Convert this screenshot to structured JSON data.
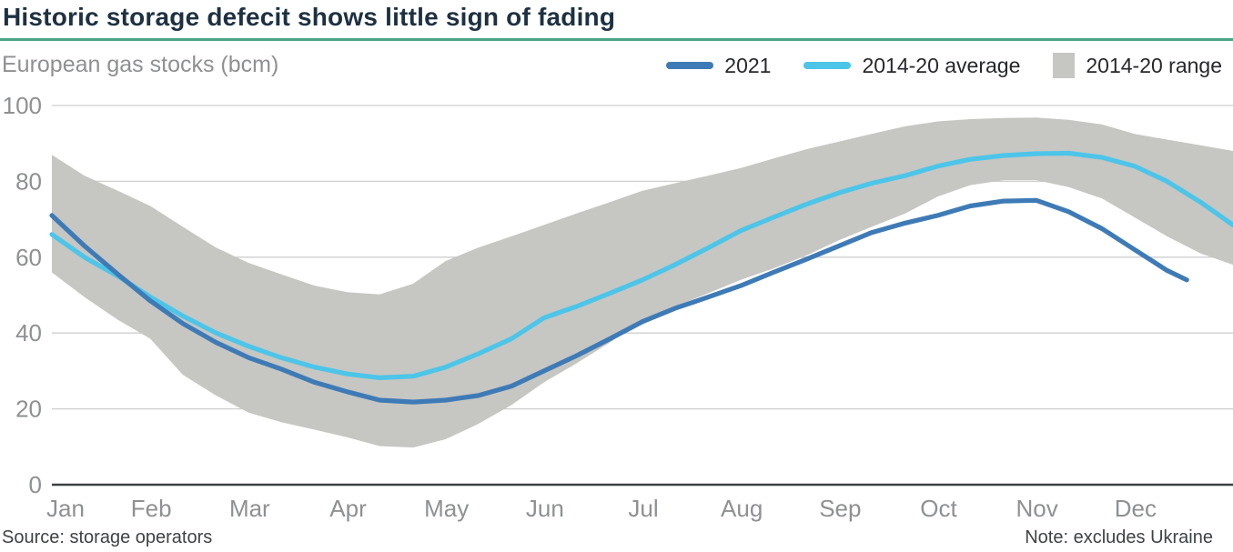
{
  "header": {
    "title": "Historic storage defecit shows little sign of fading",
    "subtitle": "European gas stocks (bcm)"
  },
  "legend_items": [
    {
      "label": "2021",
      "swatch": "line",
      "color": "#3e7bb6"
    },
    {
      "label": "2014-20 average",
      "swatch": "line",
      "color": "#4cc5e9"
    },
    {
      "label": "2014-20 range",
      "swatch": "rect",
      "color": "#c6c6c3"
    }
  ],
  "footer": {
    "source": "Source: storage operators",
    "note": "Note: excludes Ukraine"
  },
  "colors": {
    "title_navy": "#1e3142",
    "rule_green": "#4ca387",
    "axis_label_gray": "#8e9092",
    "gridline_gray": "#cfcfcf",
    "zero_axis_dark": "#3c4043",
    "series_2021": "#3e7bb6",
    "series_average": "#4cc5e9",
    "series_range": "#c6c6c3",
    "legend_text": "#26282b",
    "footer_text": "#3f4245"
  },
  "chart_data": {
    "type": "line",
    "title": "Historic storage defecit shows little sign of fading",
    "subtitle": "European gas stocks (bcm)",
    "unit": "bcm",
    "grid": "horizontal",
    "legend_position": "top-right",
    "legend": [
      "2021",
      "2014-20 average",
      "2014-20 range"
    ],
    "x_labels": [
      "Jan",
      "Feb",
      "Mar",
      "Apr",
      "May",
      "Jun",
      "Jul",
      "Aug",
      "Sep",
      "Oct",
      "Nov",
      "Dec"
    ],
    "y_ticks": [
      0,
      20,
      40,
      60,
      80,
      100
    ],
    "ylim": [
      0,
      100
    ],
    "x_domain_months": [
      0,
      12
    ],
    "series": [
      {
        "name": "2014-20 range",
        "type": "band",
        "color": "#c6c6c3",
        "top": [
          [
            0,
            87
          ],
          [
            0.33,
            81.5
          ],
          [
            0.67,
            77.5
          ],
          [
            1,
            73.5
          ],
          [
            1.33,
            68
          ],
          [
            1.67,
            62.5
          ],
          [
            2,
            58.5
          ],
          [
            2.33,
            55.5
          ],
          [
            2.67,
            52.5
          ],
          [
            3,
            50.8
          ],
          [
            3.33,
            50.2
          ],
          [
            3.67,
            53
          ],
          [
            4,
            59
          ],
          [
            4.33,
            62.5
          ],
          [
            4.67,
            65.5
          ],
          [
            5,
            68.5
          ],
          [
            5.33,
            71.5
          ],
          [
            5.67,
            74.5
          ],
          [
            6,
            77.5
          ],
          [
            6.33,
            79.5
          ],
          [
            6.67,
            81.5
          ],
          [
            7,
            83.5
          ],
          [
            7.33,
            86
          ],
          [
            7.67,
            88.5
          ],
          [
            8,
            90.5
          ],
          [
            8.33,
            92.5
          ],
          [
            8.67,
            94.5
          ],
          [
            9,
            95.8
          ],
          [
            9.33,
            96.4
          ],
          [
            9.67,
            96.7
          ],
          [
            10,
            96.8
          ],
          [
            10.33,
            96.2
          ],
          [
            10.67,
            95
          ],
          [
            11,
            92.5
          ],
          [
            11.33,
            91
          ],
          [
            11.67,
            89.5
          ],
          [
            12,
            88
          ]
        ],
        "bottom": [
          [
            0,
            56
          ],
          [
            0.33,
            49.5
          ],
          [
            0.67,
            43.5
          ],
          [
            1,
            38.5
          ],
          [
            1.33,
            29
          ],
          [
            1.67,
            23.5
          ],
          [
            2,
            19
          ],
          [
            2.33,
            16.5
          ],
          [
            2.67,
            14.5
          ],
          [
            3,
            12.5
          ],
          [
            3.33,
            10.2
          ],
          [
            3.67,
            9.8
          ],
          [
            4,
            12
          ],
          [
            4.33,
            16
          ],
          [
            4.67,
            21
          ],
          [
            5,
            27
          ],
          [
            5.33,
            32
          ],
          [
            5.67,
            37.5
          ],
          [
            6,
            43.5
          ],
          [
            6.33,
            47
          ],
          [
            6.67,
            50.5
          ],
          [
            7,
            54
          ],
          [
            7.33,
            57
          ],
          [
            7.67,
            60.5
          ],
          [
            8,
            64.5
          ],
          [
            8.33,
            68
          ],
          [
            8.67,
            71.5
          ],
          [
            9,
            76
          ],
          [
            9.33,
            79
          ],
          [
            9.67,
            80.3
          ],
          [
            10,
            80.3
          ],
          [
            10.33,
            78.5
          ],
          [
            10.67,
            75.5
          ],
          [
            11,
            70.5
          ],
          [
            11.33,
            65.5
          ],
          [
            11.67,
            61
          ],
          [
            12,
            58
          ]
        ]
      },
      {
        "name": "2014-20 average",
        "type": "line",
        "color": "#4cc5e9",
        "points": [
          [
            0,
            66
          ],
          [
            0.33,
            60
          ],
          [
            0.67,
            55
          ],
          [
            1,
            49.5
          ],
          [
            1.33,
            44.5
          ],
          [
            1.67,
            40
          ],
          [
            2,
            36.5
          ],
          [
            2.33,
            33.5
          ],
          [
            2.67,
            31
          ],
          [
            3,
            29.2
          ],
          [
            3.33,
            28.2
          ],
          [
            3.67,
            28.6
          ],
          [
            4,
            31
          ],
          [
            4.33,
            34.5
          ],
          [
            4.67,
            38.5
          ],
          [
            5,
            44
          ],
          [
            5.33,
            47
          ],
          [
            5.67,
            50.5
          ],
          [
            6,
            54
          ],
          [
            6.33,
            58
          ],
          [
            6.67,
            62.5
          ],
          [
            7,
            67
          ],
          [
            7.33,
            70.5
          ],
          [
            7.67,
            74
          ],
          [
            8,
            77
          ],
          [
            8.33,
            79.5
          ],
          [
            8.67,
            81.5
          ],
          [
            9,
            84
          ],
          [
            9.33,
            85.8
          ],
          [
            9.67,
            86.8
          ],
          [
            10,
            87.3
          ],
          [
            10.33,
            87.4
          ],
          [
            10.67,
            86.3
          ],
          [
            11,
            84
          ],
          [
            11.33,
            80
          ],
          [
            11.67,
            74.5
          ],
          [
            12,
            68.5
          ]
        ]
      },
      {
        "name": "2021",
        "type": "line",
        "color": "#3e7bb6",
        "points": [
          [
            0,
            71
          ],
          [
            0.33,
            63
          ],
          [
            0.67,
            55.5
          ],
          [
            1,
            48.5
          ],
          [
            1.33,
            42.5
          ],
          [
            1.67,
            37.5
          ],
          [
            2,
            33.5
          ],
          [
            2.33,
            30.5
          ],
          [
            2.67,
            27
          ],
          [
            3,
            24.5
          ],
          [
            3.33,
            22.3
          ],
          [
            3.67,
            21.8
          ],
          [
            4,
            22.3
          ],
          [
            4.33,
            23.5
          ],
          [
            4.67,
            26
          ],
          [
            5,
            30
          ],
          [
            5.33,
            34
          ],
          [
            5.67,
            38.5
          ],
          [
            6,
            43
          ],
          [
            6.33,
            46.5
          ],
          [
            6.67,
            49.5
          ],
          [
            7,
            52.5
          ],
          [
            7.33,
            56
          ],
          [
            7.67,
            59.5
          ],
          [
            8,
            63
          ],
          [
            8.33,
            66.5
          ],
          [
            8.67,
            69
          ],
          [
            9,
            71
          ],
          [
            9.33,
            73.5
          ],
          [
            9.67,
            74.8
          ],
          [
            10,
            75
          ],
          [
            10.33,
            72
          ],
          [
            10.67,
            67.5
          ],
          [
            11,
            62
          ],
          [
            11.33,
            56.5
          ],
          [
            11.53,
            54
          ]
        ]
      }
    ]
  }
}
